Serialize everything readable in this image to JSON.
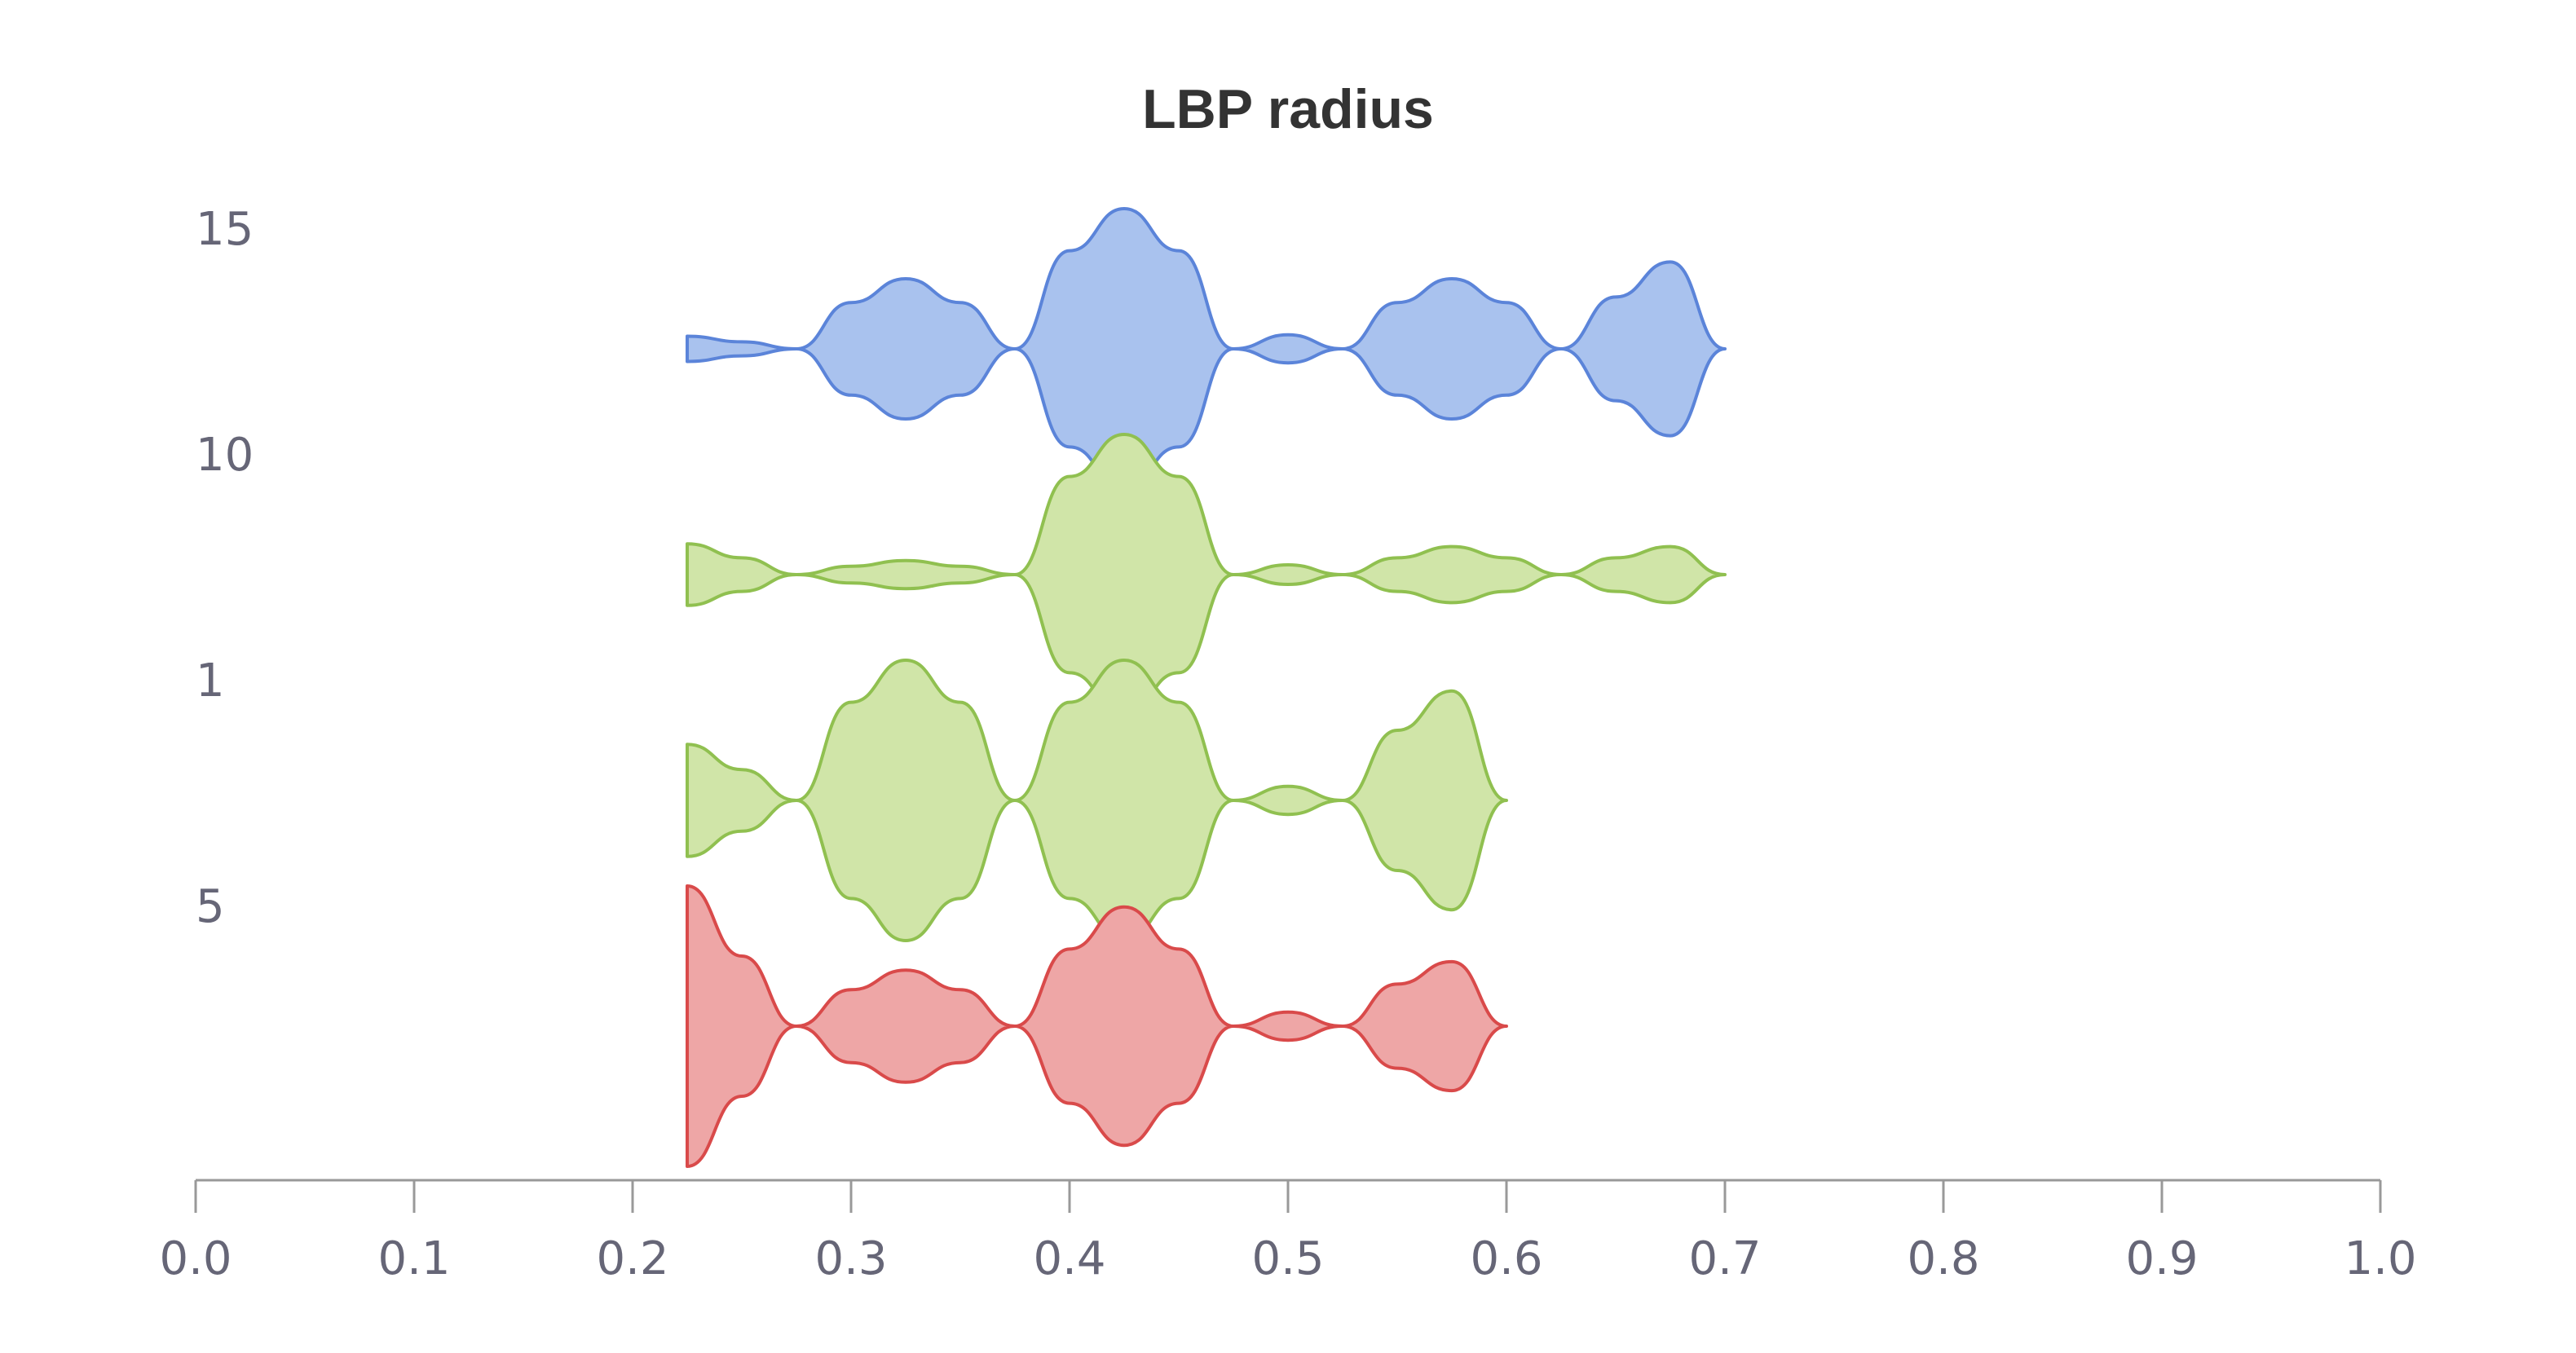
{
  "chart_data": {
    "type": "violin",
    "title": "LBP radius",
    "xlabel": "",
    "ylabel": "",
    "xlim": [
      0.0,
      1.0
    ],
    "x_ticks": [
      "0.0",
      "0.1",
      "0.2",
      "0.3",
      "0.4",
      "0.5",
      "0.6",
      "0.7",
      "0.8",
      "0.9",
      "1.0"
    ],
    "grid": false,
    "series": [
      {
        "name": "15",
        "color": "#5b84d9",
        "fill": "#a9c2ee",
        "profile": [
          [
            0.225,
            0.09
          ],
          [
            0.25,
            0.05
          ],
          [
            0.275,
            0.0
          ],
          [
            0.3,
            0.33
          ],
          [
            0.325,
            0.5
          ],
          [
            0.35,
            0.33
          ],
          [
            0.375,
            0.0
          ],
          [
            0.4,
            0.7
          ],
          [
            0.425,
            1.0
          ],
          [
            0.45,
            0.7
          ],
          [
            0.475,
            0.0
          ],
          [
            0.5,
            0.1
          ],
          [
            0.525,
            0.0
          ],
          [
            0.55,
            0.33
          ],
          [
            0.575,
            0.5
          ],
          [
            0.6,
            0.33
          ],
          [
            0.625,
            0.0
          ],
          [
            0.65,
            0.37
          ],
          [
            0.675,
            0.62
          ],
          [
            0.7,
            0.0
          ]
        ]
      },
      {
        "name": "10",
        "color": "#90c050",
        "fill": "#d0e5a8",
        "profile": [
          [
            0.225,
            0.22
          ],
          [
            0.25,
            0.12
          ],
          [
            0.275,
            0.0
          ],
          [
            0.3,
            0.06
          ],
          [
            0.325,
            0.1
          ],
          [
            0.35,
            0.06
          ],
          [
            0.375,
            0.0
          ],
          [
            0.4,
            0.7
          ],
          [
            0.425,
            1.0
          ],
          [
            0.45,
            0.7
          ],
          [
            0.475,
            0.0
          ],
          [
            0.5,
            0.07
          ],
          [
            0.525,
            0.0
          ],
          [
            0.55,
            0.12
          ],
          [
            0.575,
            0.2
          ],
          [
            0.6,
            0.12
          ],
          [
            0.625,
            0.0
          ],
          [
            0.65,
            0.12
          ],
          [
            0.675,
            0.2
          ],
          [
            0.7,
            0.0
          ]
        ]
      },
      {
        "name": "1",
        "color": "#90c050",
        "fill": "#d0e5a8",
        "profile": [
          [
            0.225,
            0.4
          ],
          [
            0.25,
            0.22
          ],
          [
            0.275,
            0.0
          ],
          [
            0.3,
            0.7
          ],
          [
            0.325,
            1.0
          ],
          [
            0.35,
            0.7
          ],
          [
            0.375,
            0.0
          ],
          [
            0.4,
            0.7
          ],
          [
            0.425,
            1.0
          ],
          [
            0.45,
            0.7
          ],
          [
            0.475,
            0.0
          ],
          [
            0.5,
            0.1
          ],
          [
            0.525,
            0.0
          ],
          [
            0.55,
            0.5
          ],
          [
            0.575,
            0.78
          ],
          [
            0.6,
            0.0
          ]
        ]
      },
      {
        "name": "5",
        "color": "#d94a4a",
        "fill": "#eea6a6",
        "profile": [
          [
            0.225,
            1.0
          ],
          [
            0.25,
            0.5
          ],
          [
            0.275,
            0.0
          ],
          [
            0.3,
            0.26
          ],
          [
            0.325,
            0.4
          ],
          [
            0.35,
            0.26
          ],
          [
            0.375,
            0.0
          ],
          [
            0.4,
            0.55
          ],
          [
            0.425,
            0.85
          ],
          [
            0.45,
            0.55
          ],
          [
            0.475,
            0.0
          ],
          [
            0.5,
            0.1
          ],
          [
            0.525,
            0.0
          ],
          [
            0.55,
            0.3
          ],
          [
            0.575,
            0.46
          ],
          [
            0.6,
            0.0
          ]
        ]
      }
    ]
  }
}
